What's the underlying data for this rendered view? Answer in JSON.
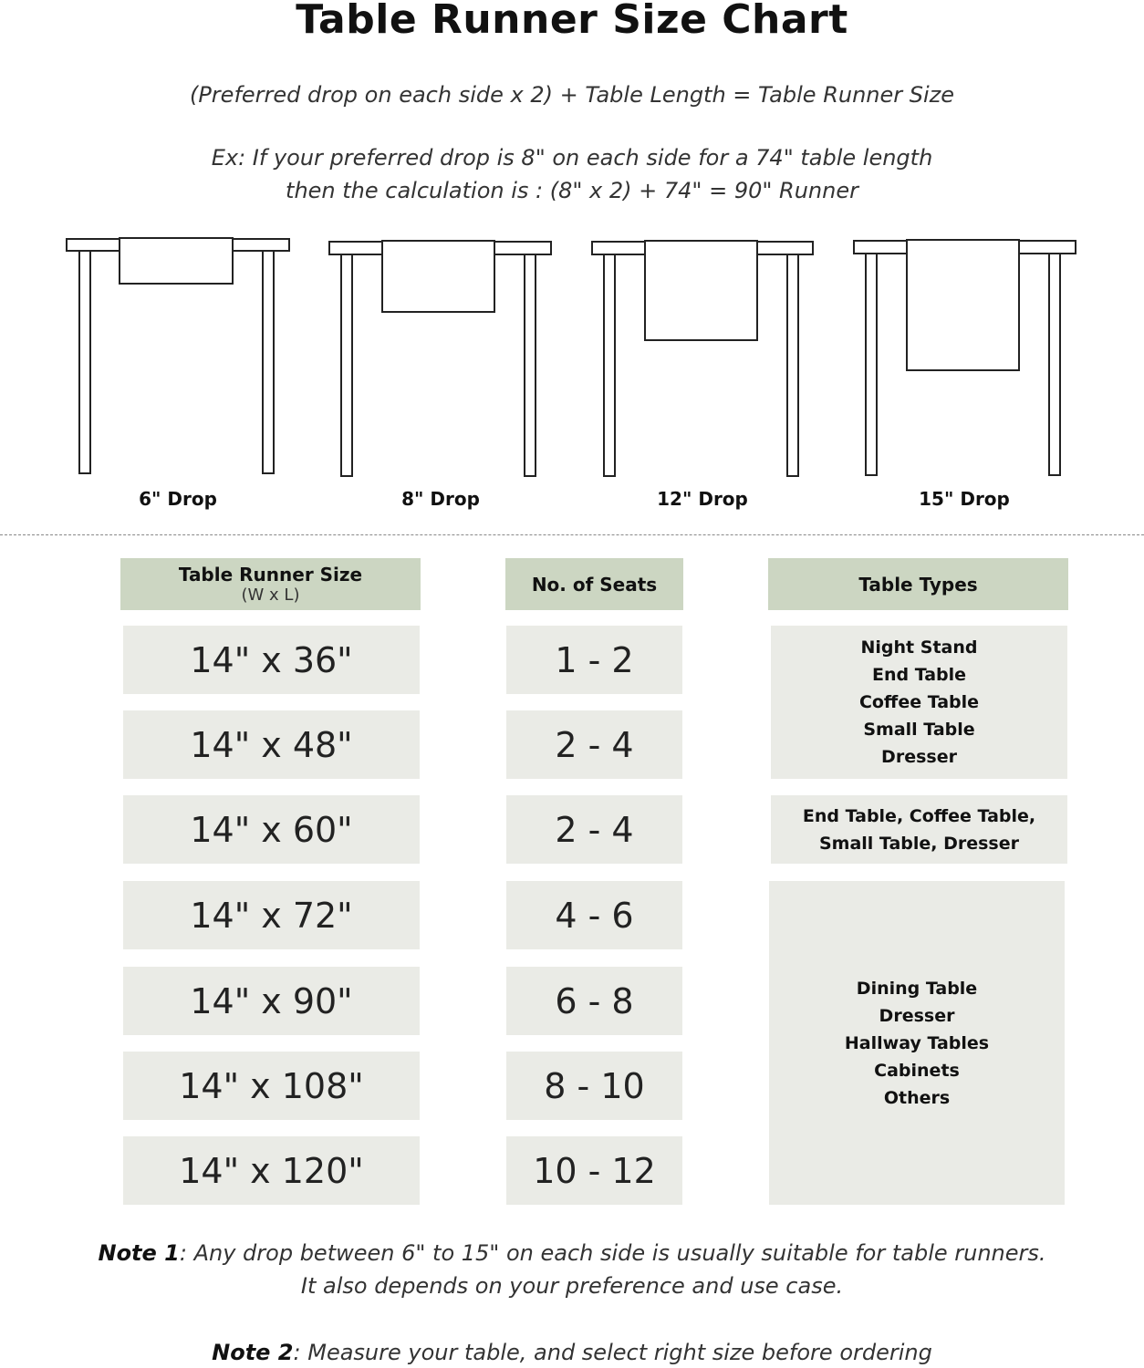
{
  "title": "Table Runner Size Chart",
  "formula": "(Preferred drop on each side x 2) + Table Length = Table Runner Size",
  "example": {
    "line1": "Ex: If your preferred drop is 8\" on each side for a 74\" table length",
    "line2": "then the calculation is : (8\" x 2) + 74\" = 90\" Runner"
  },
  "drops": [
    {
      "label": "6\" Drop",
      "inches": 6
    },
    {
      "label": "8\" Drop",
      "inches": 8
    },
    {
      "label": "12\" Drop",
      "inches": 12
    },
    {
      "label": "15\" Drop",
      "inches": 15
    }
  ],
  "table": {
    "headers": {
      "size": "Table Runner Size",
      "size_sub": "(W x L)",
      "seats": "No. of Seats",
      "types": "Table Types"
    },
    "rows": [
      {
        "size": "14\" x 36\"",
        "seats": "1 - 2"
      },
      {
        "size": "14\" x 48\"",
        "seats": "2 - 4"
      },
      {
        "size": "14\" x 60\"",
        "seats": "2 - 4"
      },
      {
        "size": "14\" x 72\"",
        "seats": "4 - 6"
      },
      {
        "size": "14\" x 90\"",
        "seats": "6 - 8"
      },
      {
        "size": "14\" x 108\"",
        "seats": "8 - 10"
      },
      {
        "size": "14\" x 120\"",
        "seats": "10 - 12"
      }
    ],
    "type_groups": [
      {
        "lines": [
          "Night Stand",
          "End Table",
          "Coffee Table",
          "Small Table",
          "Dresser"
        ]
      },
      {
        "lines": [
          "End Table, Coffee Table,",
          "Small Table, Dresser"
        ]
      },
      {
        "lines": [
          "Dining Table",
          "Dresser",
          "Hallway Tables",
          "Cabinets",
          "Others"
        ]
      }
    ]
  },
  "notes": {
    "note1_label": "Note 1",
    "note1_text": ": Any drop between 6\" to 15\" on each side is usually suitable for table runners.",
    "note1_line2": "It also depends on your preference and use case.",
    "note2_label": "Note 2",
    "note2_text": ": Measure your table, and select right size before ordering"
  },
  "colors": {
    "header": "#ccd6c2",
    "cell": "#eaebe6"
  }
}
